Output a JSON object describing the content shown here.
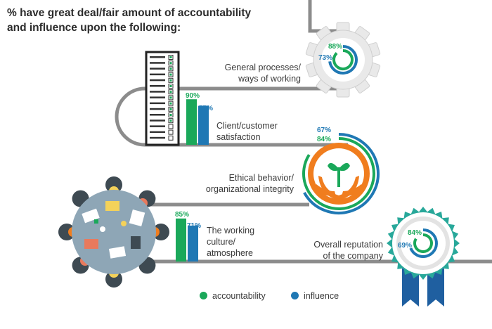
{
  "title_line1": "% have great deal/fair amount of accountability",
  "title_line2": "and influence upon the following:",
  "chart_data": {
    "type": "bar",
    "title": "% have great deal/fair amount of accountability and influence upon the following:",
    "categories": [
      "General processes/ ways of working",
      "Client/customer satisfaction",
      "Ethical behavior/ organizational integrity",
      "The working culture/ atmosphere",
      "Overall reputation of the company"
    ],
    "series": [
      {
        "name": "accountability",
        "color": "#1aa85a",
        "values": [
          88,
          90,
          84,
          85,
          84
        ]
      },
      {
        "name": "influence",
        "color": "#1f78b4",
        "values": [
          73,
          77,
          67,
          71,
          69
        ]
      }
    ],
    "ylim": [
      0,
      100
    ],
    "legend": "bottom"
  },
  "labels": {
    "general_l1": "General processes/",
    "general_l2": "ways of working",
    "client_l1": "Client/customer",
    "client_l2": "satisfaction",
    "ethical_l1": "Ethical behavior/",
    "ethical_l2": "organizational integrity",
    "culture_l1": "The working",
    "culture_l2": "culture/",
    "culture_l3": "atmosphere",
    "reputation_l1": "Overall reputation",
    "reputation_l2": "of the company"
  },
  "values_text": {
    "general_acc": "88%",
    "general_inf": "73%",
    "client_acc": "90%",
    "client_inf": "77%",
    "ethical_acc": "84%",
    "ethical_inf": "67%",
    "culture_acc": "85%",
    "culture_inf": "71%",
    "reputation_acc": "84%",
    "reputation_inf": "69%"
  },
  "legend": {
    "accountability": "accountability",
    "influence": "influence"
  },
  "colors": {
    "accountability": "#1aa85a",
    "influence": "#1f78b4",
    "track": "#8c8c8c",
    "orange": "#f07d1e"
  },
  "icons": [
    "gear-icon",
    "checklist-icon",
    "plant-in-hands-icon",
    "meeting-table-icon",
    "rosette-icon"
  ]
}
